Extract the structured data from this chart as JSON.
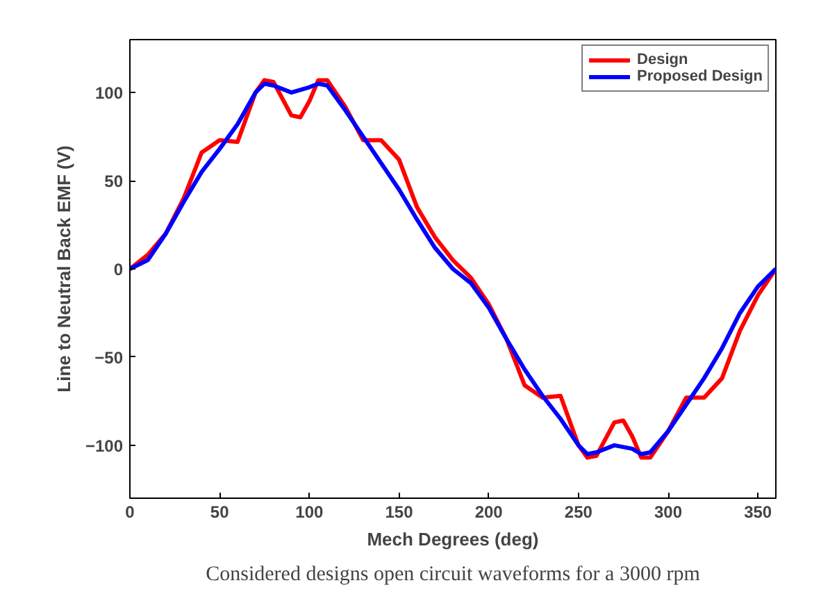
{
  "chart_data": {
    "type": "line",
    "xlabel": "Mech Degrees (deg)",
    "ylabel": "Line to Neutral Back EMF (V)",
    "annotations": [
      "Considered designs open circuit waveforms for a 3000 rpm"
    ],
    "xlim": [
      0,
      360
    ],
    "xticks": [
      0,
      50,
      100,
      150,
      200,
      250,
      300,
      350
    ],
    "ylim": [
      -130,
      130
    ],
    "yticks": [
      -100,
      -50,
      0,
      50,
      100
    ],
    "grid": false,
    "legend": "top right",
    "line_style": "solid",
    "marker": "none",
    "series": [
      {
        "name": "Design",
        "color": "#ff0000",
        "x": [
          0,
          10,
          20,
          30,
          40,
          50,
          60,
          70,
          75,
          80,
          90,
          95,
          100,
          105,
          110,
          120,
          130,
          140,
          150,
          160,
          170,
          180,
          190,
          200,
          210,
          220,
          230,
          240,
          250,
          255,
          260,
          270,
          275,
          280,
          285,
          290,
          300,
          310,
          320,
          330,
          340,
          350,
          360
        ],
        "values": [
          0,
          8,
          20,
          40,
          66,
          73,
          72,
          100,
          107,
          106,
          87,
          86,
          95,
          107,
          107,
          92,
          73,
          73,
          62,
          35,
          18,
          5,
          -5,
          -20,
          -40,
          -66,
          -73,
          -72,
          -100,
          -107,
          -106,
          -87,
          -86,
          -95,
          -107,
          -107,
          -92,
          -73,
          -73,
          -62,
          -35,
          -15,
          0
        ]
      },
      {
        "name": "Proposed Design",
        "color": "#0000ff",
        "x": [
          0,
          10,
          20,
          30,
          40,
          50,
          60,
          70,
          75,
          80,
          90,
          100,
          105,
          110,
          120,
          130,
          140,
          150,
          160,
          170,
          180,
          190,
          200,
          210,
          220,
          230,
          240,
          250,
          255,
          260,
          270,
          280,
          285,
          290,
          300,
          310,
          320,
          330,
          340,
          350,
          360
        ],
        "values": [
          0,
          5,
          20,
          38,
          55,
          68,
          82,
          100,
          105,
          104,
          100,
          103,
          105,
          104,
          90,
          75,
          60,
          45,
          28,
          12,
          0,
          -8,
          -22,
          -40,
          -57,
          -72,
          -85,
          -100,
          -105,
          -104,
          -100,
          -102,
          -105,
          -104,
          -92,
          -77,
          -62,
          -45,
          -25,
          -10,
          0
        ]
      }
    ]
  }
}
